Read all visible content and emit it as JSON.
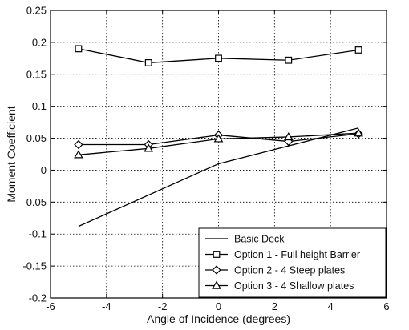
{
  "chart_data": {
    "type": "line",
    "title": "",
    "xlabel": "Angle of Incidence (degrees)",
    "ylabel": "Moment Coefficient",
    "xlim": [
      -6,
      6
    ],
    "ylim": [
      -0.2,
      0.25
    ],
    "xticks": [
      -6,
      -4,
      -2,
      0,
      2,
      4,
      6
    ],
    "yticks": [
      -0.2,
      -0.15,
      -0.1,
      -0.05,
      0,
      0.05,
      0.1,
      0.15,
      0.2,
      0.25
    ],
    "grid": true,
    "legend_position": "bottom-right",
    "series": [
      {
        "name": "Basic Deck",
        "marker": "none",
        "x": [
          -5,
          0,
          5
        ],
        "y": [
          -0.088,
          0.01,
          0.066
        ]
      },
      {
        "name": "Option 1 - Full height Barrier",
        "marker": "square",
        "x": [
          -5,
          -2.5,
          0,
          2.5,
          5
        ],
        "y": [
          0.19,
          0.168,
          0.175,
          0.172,
          0.188
        ]
      },
      {
        "name": "Option 2 - 4 Steep plates",
        "marker": "diamond",
        "x": [
          -5,
          -2.5,
          0,
          2.5,
          5
        ],
        "y": [
          0.04,
          0.04,
          0.055,
          0.045,
          0.057
        ]
      },
      {
        "name": "Option 3 - 4 Shallow plates",
        "marker": "triangle",
        "x": [
          -5,
          -2.5,
          0,
          2.5,
          5
        ],
        "y": [
          0.024,
          0.034,
          0.049,
          0.052,
          0.058
        ]
      }
    ]
  }
}
